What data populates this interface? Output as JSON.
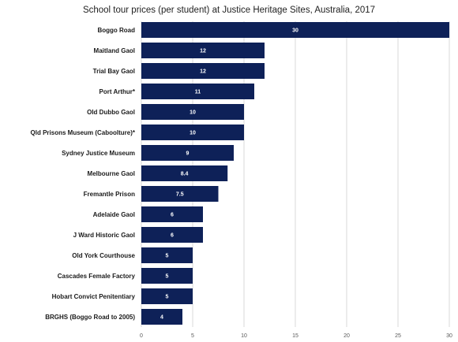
{
  "chart_data": {
    "type": "bar",
    "orientation": "horizontal",
    "title": "School tour prices (per student) at Justice Heritage Sites, Australia, 2017",
    "categories": [
      "Boggo Road",
      "Maitland Gaol",
      "Trial Bay Gaol",
      "Port Arthur*",
      "Old Dubbo Gaol",
      "Qld Prisons Museum (Caboolture)*",
      "Sydney Justice Museum",
      "Melbourne Gaol",
      "Fremantle Prison",
      "Adelaide Gaol",
      "J Ward Historic Gaol",
      "Old York Courthouse",
      "Cascades Female Factory",
      "Hobart Convict Penitentiary",
      "BRGHS (Boggo Road to 2005)"
    ],
    "values": [
      30,
      12,
      12,
      11,
      10,
      10,
      9,
      8.4,
      7.5,
      6,
      6,
      5,
      5,
      5,
      4
    ],
    "data_labels": [
      "30",
      "12",
      "12",
      "11",
      "10",
      "10",
      "9",
      "8.4",
      "7.5",
      "6",
      "6",
      "5",
      "5",
      "5",
      "4"
    ],
    "xlim": [
      0,
      30
    ],
    "xticks": [
      "0",
      "5",
      "10",
      "15",
      "20",
      "25",
      "30"
    ],
    "grid": true,
    "legend": "none",
    "colors": {
      "bar": "#0e2158",
      "grid": "#d9d9d9",
      "label": "#ffffff"
    }
  }
}
